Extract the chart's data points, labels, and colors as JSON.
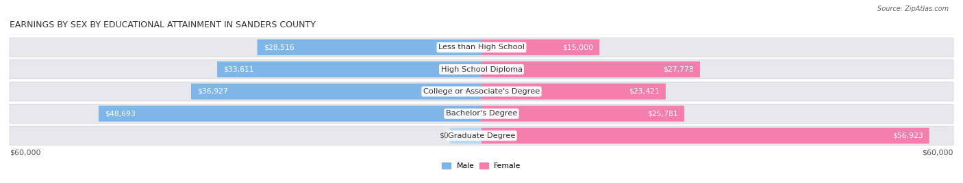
{
  "title": "EARNINGS BY SEX BY EDUCATIONAL ATTAINMENT IN SANDERS COUNTY",
  "source": "Source: ZipAtlas.com",
  "categories": [
    "Less than High School",
    "High School Diploma",
    "College or Associate's Degree",
    "Bachelor's Degree",
    "Graduate Degree"
  ],
  "male_values": [
    28516,
    33611,
    36927,
    48693,
    0
  ],
  "female_values": [
    15000,
    27778,
    23421,
    25781,
    56923
  ],
  "male_labels": [
    "$28,516",
    "$33,611",
    "$36,927",
    "$48,693",
    "$0"
  ],
  "female_labels": [
    "$15,000",
    "$27,778",
    "$23,421",
    "$25,781",
    "$56,923"
  ],
  "male_color": "#7EB6E8",
  "female_color": "#F47EAC",
  "male_color_light": "#B8D8F0",
  "female_color_dark": "#EE5C97",
  "bar_background_color": "#E8E8EC",
  "bar_height": 0.72,
  "max_value": 60000,
  "xlabel_left": "$60,000",
  "xlabel_right": "$60,000",
  "legend_male": "Male",
  "legend_female": "Female",
  "background_color": "#ffffff",
  "title_fontsize": 9.0,
  "label_fontsize": 7.8,
  "axis_fontsize": 8.0,
  "category_fontsize": 8.2,
  "row_sep_color": "#cccccc"
}
